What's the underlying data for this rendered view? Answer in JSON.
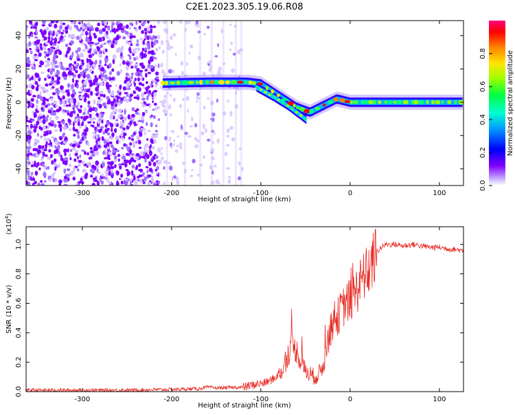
{
  "title": "C2E1.2023.305.19.06.R08",
  "chart_data": [
    {
      "type": "heatmap",
      "xlabel": "Height of straight line (km)",
      "ylabel": "Frequency (Hz)",
      "xlim": [
        -363,
        127
      ],
      "ylim": [
        -50,
        49
      ],
      "xticks": [
        -300,
        -200,
        -100,
        0,
        100
      ],
      "yticks": [
        -40,
        -20,
        0,
        20,
        40
      ],
      "colorbar": {
        "label": "Normalized spectral amplitude",
        "range": [
          0.0,
          1.0
        ],
        "ticks": [
          "0.0",
          "0.2",
          "0.4",
          "0.6",
          "0.8"
        ],
        "colormap": [
          "#ffffff",
          "#b28cff",
          "#7f00ff",
          "#0000ff",
          "#00c8ff",
          "#00ff80",
          "#a0ff00",
          "#ffe600",
          "#ff8000",
          "#ff0000",
          "#ff0080"
        ]
      },
      "ridge": {
        "description_points_x": [
          -210,
          -160,
          -115,
          -100,
          -80,
          -60,
          -45,
          -30,
          -15,
          0,
          40,
          127
        ],
        "description_points_y": [
          11.5,
          12,
          12,
          11,
          4,
          -3,
          -6,
          -2,
          2,
          0,
          0,
          0
        ],
        "branch_x": [
          -105,
          -85,
          -70,
          -55,
          -48
        ],
        "branch_y": [
          9,
          3,
          -2,
          -8,
          -11
        ]
      },
      "noise_region_x": [
        -363,
        -120
      ]
    },
    {
      "type": "line",
      "xlabel": "Height of straight line (km)",
      "ylabel": "SNR (10 * v/v)",
      "yscale_label": "(x10^4)",
      "xlim": [
        -363,
        127
      ],
      "ylim": [
        0,
        1.12
      ],
      "xticks": [
        -300,
        -200,
        -100,
        0,
        100
      ],
      "yticks": [
        0.0,
        0.2,
        0.4,
        0.6,
        0.8,
        1.0
      ],
      "color": "#e8241c",
      "series": [
        {
          "name": "",
          "x": [
            -363,
            -300,
            -250,
            -200,
            -170,
            -160,
            -150,
            -120,
            -105,
            -95,
            -85,
            -75,
            -70,
            -65,
            -60,
            -55,
            -50,
            -45,
            -40,
            -35,
            -30,
            -25,
            -20,
            -15,
            -10,
            -5,
            0,
            5,
            10,
            15,
            20,
            25,
            30,
            35,
            40,
            50,
            60,
            70,
            80,
            90,
            100,
            110,
            127
          ],
          "values": [
            0.01,
            0.01,
            0.01,
            0.015,
            0.02,
            0.03,
            0.025,
            0.03,
            0.05,
            0.06,
            0.09,
            0.15,
            0.25,
            0.3,
            0.28,
            0.2,
            0.14,
            0.12,
            0.1,
            0.12,
            0.18,
            0.35,
            0.45,
            0.5,
            0.55,
            0.6,
            0.62,
            0.66,
            0.72,
            0.78,
            0.82,
            0.88,
            0.95,
            0.98,
            1.0,
            1.0,
            0.99,
            1.0,
            0.99,
            0.98,
            0.98,
            0.97,
            0.96
          ]
        }
      ]
    }
  ]
}
